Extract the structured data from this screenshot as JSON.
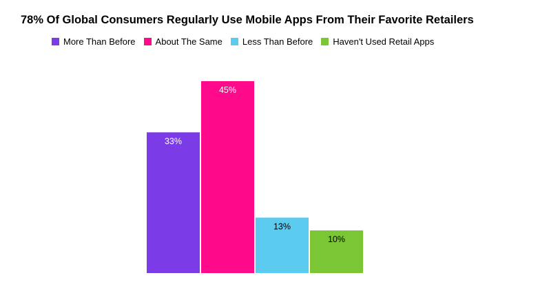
{
  "chart_data": {
    "type": "bar",
    "title": "78% Of Global Consumers Regularly Use Mobile Apps From Their Favorite Retailers",
    "categories": [
      "More Than Before",
      "About The Same",
      "Less Than Before",
      "Haven't Used Retail Apps"
    ],
    "values": [
      33,
      45,
      13,
      10
    ],
    "data_labels": [
      "33%",
      "45%",
      "13%",
      "10%"
    ],
    "colors": [
      "#7b3be6",
      "#ff0a8a",
      "#5bcbf0",
      "#7ac635"
    ],
    "label_colors": [
      "#ffffff",
      "#ffffff",
      "#000000",
      "#000000"
    ],
    "ylim": [
      0,
      45
    ],
    "grid": false,
    "legend_placement": "top",
    "xlabel": "",
    "ylabel": ""
  }
}
